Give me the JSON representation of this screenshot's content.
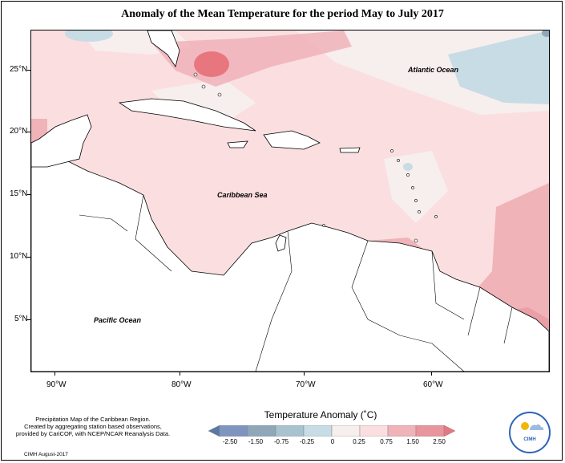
{
  "title": "Anomaly of the Mean Temperature for the period May to July 2017",
  "map": {
    "labels": {
      "atlantic": "Atlantic Ocean",
      "caribbean": "Caribbean Sea",
      "pacific": "Pacific Ocean"
    },
    "lat_ticks": [
      "25°N",
      "20°N",
      "15°N",
      "10°N",
      "5°N"
    ],
    "lon_ticks": [
      "90°W",
      "80°W",
      "70°W",
      "60°W"
    ],
    "colors": {
      "neg_2_50": "#5a78a6",
      "neg_1_50": "#7f95bf",
      "neg_0_75": "#8fa7b8",
      "neg_0_25": "#c7dce4",
      "zero": "#f7eeee",
      "pos_0_25": "#fbdfe0",
      "pos_0_75": "#efb3b8",
      "pos_1_50": "#e8959d",
      "pos_2_50": "#e8767f",
      "land": "#ffffff"
    }
  },
  "legend": {
    "title": "Temperature Anomaly (˚C)",
    "labels": [
      "-2.50",
      "-1.50",
      "-0.75",
      "-0.25",
      "0",
      "0.25",
      "0.75",
      "1.50",
      "2.50"
    ]
  },
  "note": {
    "line1": "Precipitation Map of the Caribbean Region.",
    "line2": "Created by aggregating station based observations,",
    "line3": "provided by CariCOF, with NCEP/NCAR Reanalysis Data."
  },
  "credit": "CIMH August-2017",
  "logo": {
    "text": "CIMH"
  }
}
